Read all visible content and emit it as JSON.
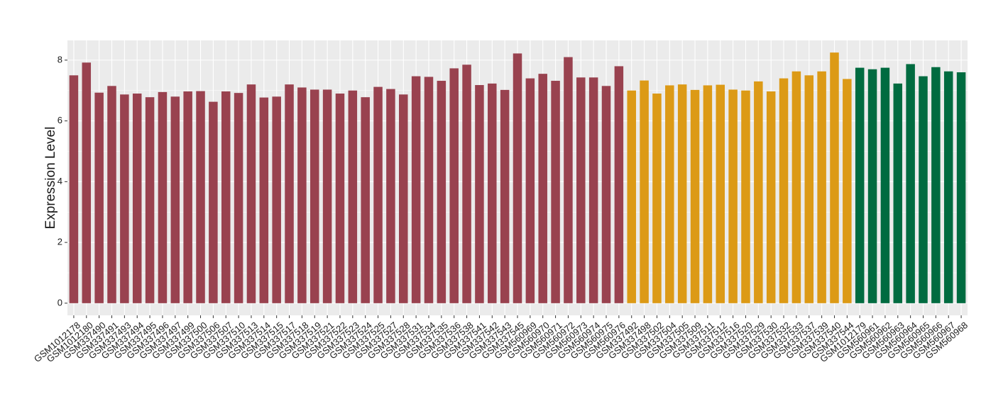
{
  "chart_data": {
    "type": "bar",
    "y_label": "Expression Level",
    "categories": [
      "GSM1012178",
      "GSM1012180",
      "GSM337490",
      "GSM337491",
      "GSM337493",
      "GSM337494",
      "GSM337495",
      "GSM337496",
      "GSM337497",
      "GSM337499",
      "GSM337500",
      "GSM337506",
      "GSM337507",
      "GSM337510",
      "GSM337513",
      "GSM337514",
      "GSM337515",
      "GSM337517",
      "GSM337518",
      "GSM337519",
      "GSM337521",
      "GSM337522",
      "GSM337523",
      "GSM337524",
      "GSM337525",
      "GSM337527",
      "GSM337528",
      "GSM337531",
      "GSM337534",
      "GSM337535",
      "GSM337536",
      "GSM337538",
      "GSM337541",
      "GSM337542",
      "GSM337543",
      "GSM337545",
      "GSM560969",
      "GSM560970",
      "GSM560971",
      "GSM560972",
      "GSM560973",
      "GSM560974",
      "GSM560975",
      "GSM560976",
      "GSM337492",
      "GSM337498",
      "GSM337502",
      "GSM337504",
      "GSM337505",
      "GSM337509",
      "GSM337511",
      "GSM337512",
      "GSM337516",
      "GSM337520",
      "GSM337529",
      "GSM337530",
      "GSM337532",
      "GSM337533",
      "GSM337537",
      "GSM337539",
      "GSM337540",
      "GSM337544",
      "GSM1012179",
      "GSM560961",
      "GSM560962",
      "GSM560963",
      "GSM560964",
      "GSM560965",
      "GSM560966",
      "GSM560967",
      "GSM560968"
    ],
    "values": [
      7.5,
      7.92,
      6.93,
      7.15,
      6.87,
      6.9,
      6.78,
      6.95,
      6.8,
      6.97,
      6.98,
      6.63,
      6.97,
      6.92,
      7.2,
      6.77,
      6.8,
      7.2,
      7.1,
      7.03,
      7.03,
      6.9,
      7.0,
      6.78,
      7.12,
      7.05,
      6.87,
      7.47,
      7.45,
      7.32,
      7.73,
      7.85,
      7.18,
      7.23,
      7.02,
      8.22,
      7.4,
      7.55,
      7.32,
      8.1,
      7.43,
      7.43,
      7.15,
      7.8,
      7.0,
      7.33,
      6.9,
      7.17,
      7.2,
      7.02,
      7.17,
      7.19,
      7.03,
      7.0,
      7.3,
      6.97,
      7.4,
      7.63,
      7.5,
      7.63,
      8.25,
      7.38,
      7.75,
      7.7,
      7.75,
      7.23,
      7.87,
      7.47,
      7.77,
      7.63,
      7.6
    ],
    "colors": [
      "#99424f",
      "#99424f",
      "#99424f",
      "#99424f",
      "#99424f",
      "#99424f",
      "#99424f",
      "#99424f",
      "#99424f",
      "#99424f",
      "#99424f",
      "#99424f",
      "#99424f",
      "#99424f",
      "#99424f",
      "#99424f",
      "#99424f",
      "#99424f",
      "#99424f",
      "#99424f",
      "#99424f",
      "#99424f",
      "#99424f",
      "#99424f",
      "#99424f",
      "#99424f",
      "#99424f",
      "#99424f",
      "#99424f",
      "#99424f",
      "#99424f",
      "#99424f",
      "#99424f",
      "#99424f",
      "#99424f",
      "#99424f",
      "#99424f",
      "#99424f",
      "#99424f",
      "#99424f",
      "#99424f",
      "#99424f",
      "#99424f",
      "#99424f",
      "#dc9a16",
      "#dc9a16",
      "#dc9a16",
      "#dc9a16",
      "#dc9a16",
      "#dc9a16",
      "#dc9a16",
      "#dc9a16",
      "#dc9a16",
      "#dc9a16",
      "#dc9a16",
      "#dc9a16",
      "#dc9a16",
      "#dc9a16",
      "#dc9a16",
      "#dc9a16",
      "#dc9a16",
      "#dc9a16",
      "#006b40",
      "#006b40",
      "#006b40",
      "#006b40",
      "#006b40",
      "#006b40",
      "#006b40",
      "#006b40",
      "#006b40"
    ],
    "ylim": [
      -0.4,
      8.65
    ],
    "yticks": [
      0,
      2,
      4,
      6,
      8
    ],
    "grid": true
  }
}
